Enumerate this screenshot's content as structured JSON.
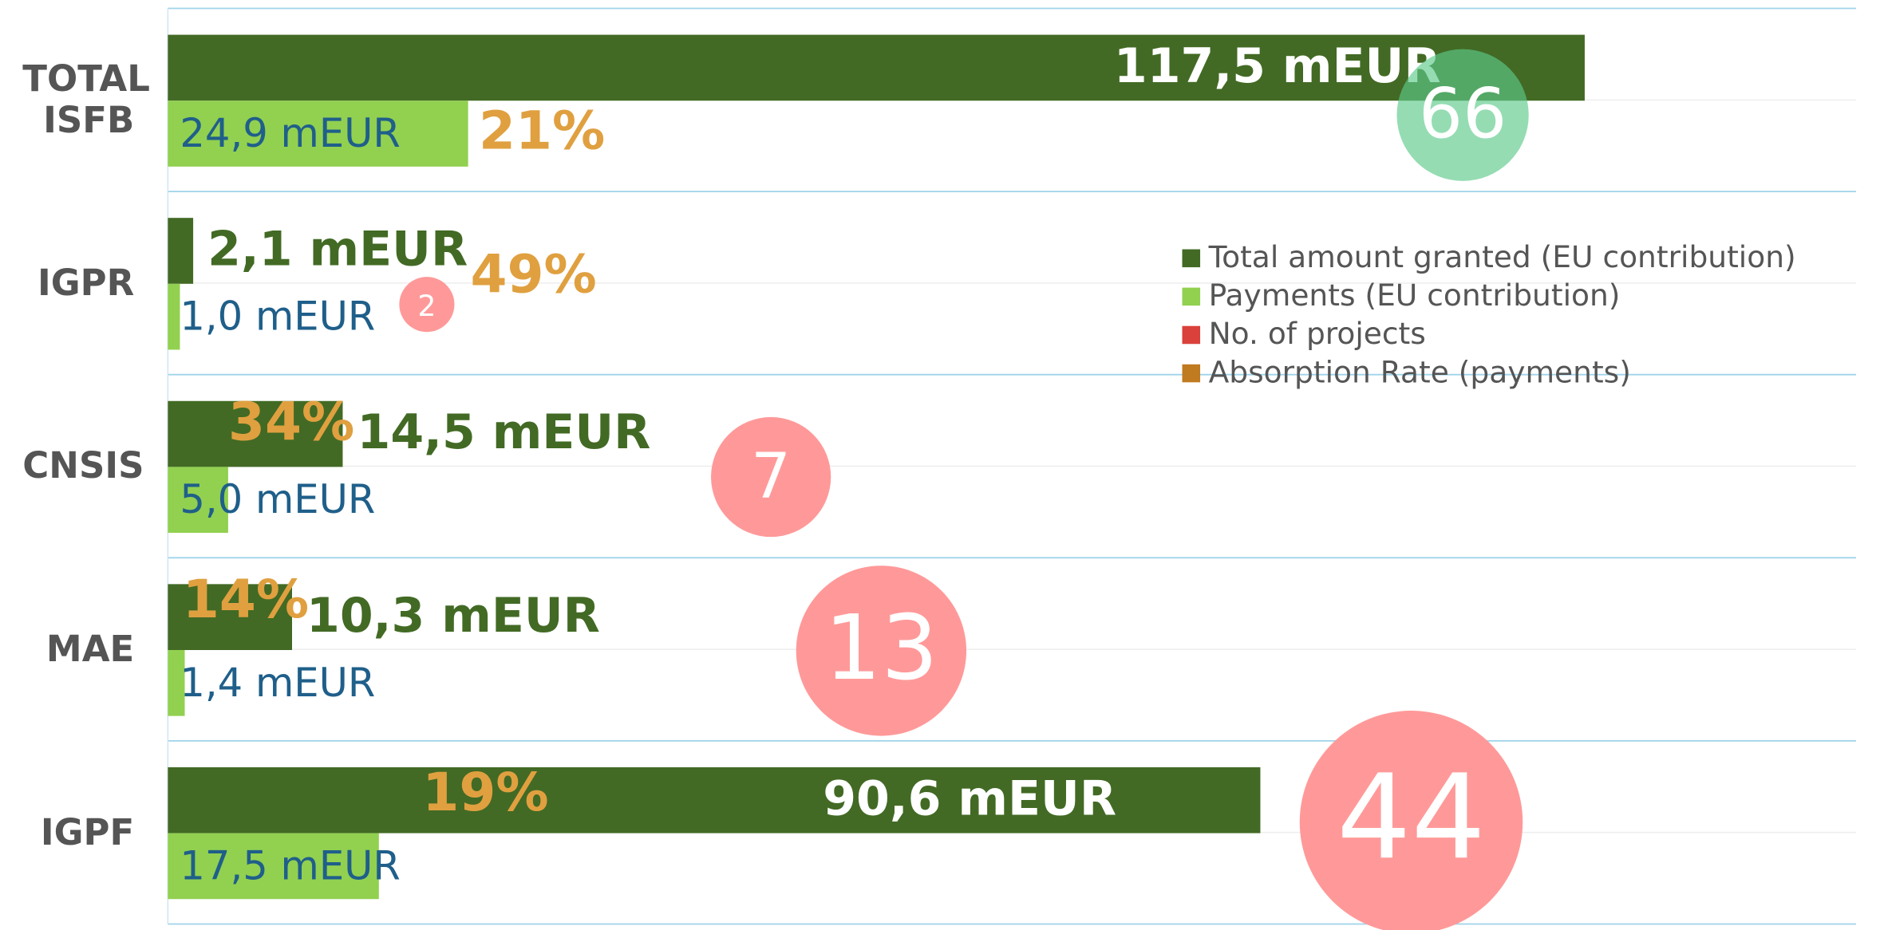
{
  "chart_data": {
    "type": "bar",
    "orientation": "horizontal",
    "categories": [
      "TOTAL ISFB",
      "IGPR",
      "CNSIS",
      "MAE",
      "IGPF"
    ],
    "xlim": [
      0,
      140
    ],
    "grid": true,
    "legend": "right",
    "series": [
      {
        "name": "Total amount granted (EU contribution)",
        "color": "#426a24",
        "values": [
          117.5,
          2.1,
          14.5,
          10.3,
          90.6
        ],
        "value_labels": [
          "117,5 mEUR",
          "2,1 mEUR",
          "14,5 mEUR",
          "10,3 mEUR",
          "90,6 mEUR"
        ]
      },
      {
        "name": "Payments (EU contribution)",
        "color": "#92d050",
        "values": [
          24.9,
          1.0,
          5.0,
          1.4,
          17.5
        ],
        "value_labels": [
          "24,9 mEUR",
          "1,0 mEUR",
          "5,0 mEUR",
          "1,4 mEUR",
          "17,5 mEUR"
        ]
      },
      {
        "name": "No. of projects",
        "color": "#d9413a",
        "mark_color": "#ff9999",
        "values": [
          66,
          2,
          7,
          13,
          44
        ]
      },
      {
        "name": "Absorption Rate (payments)",
        "color": "#c07a20",
        "label_color": "#e0a040",
        "values": [
          21,
          49,
          34,
          14,
          19
        ],
        "value_labels": [
          "21%",
          "49%",
          "34%",
          "14%",
          "19%"
        ]
      }
    ]
  }
}
